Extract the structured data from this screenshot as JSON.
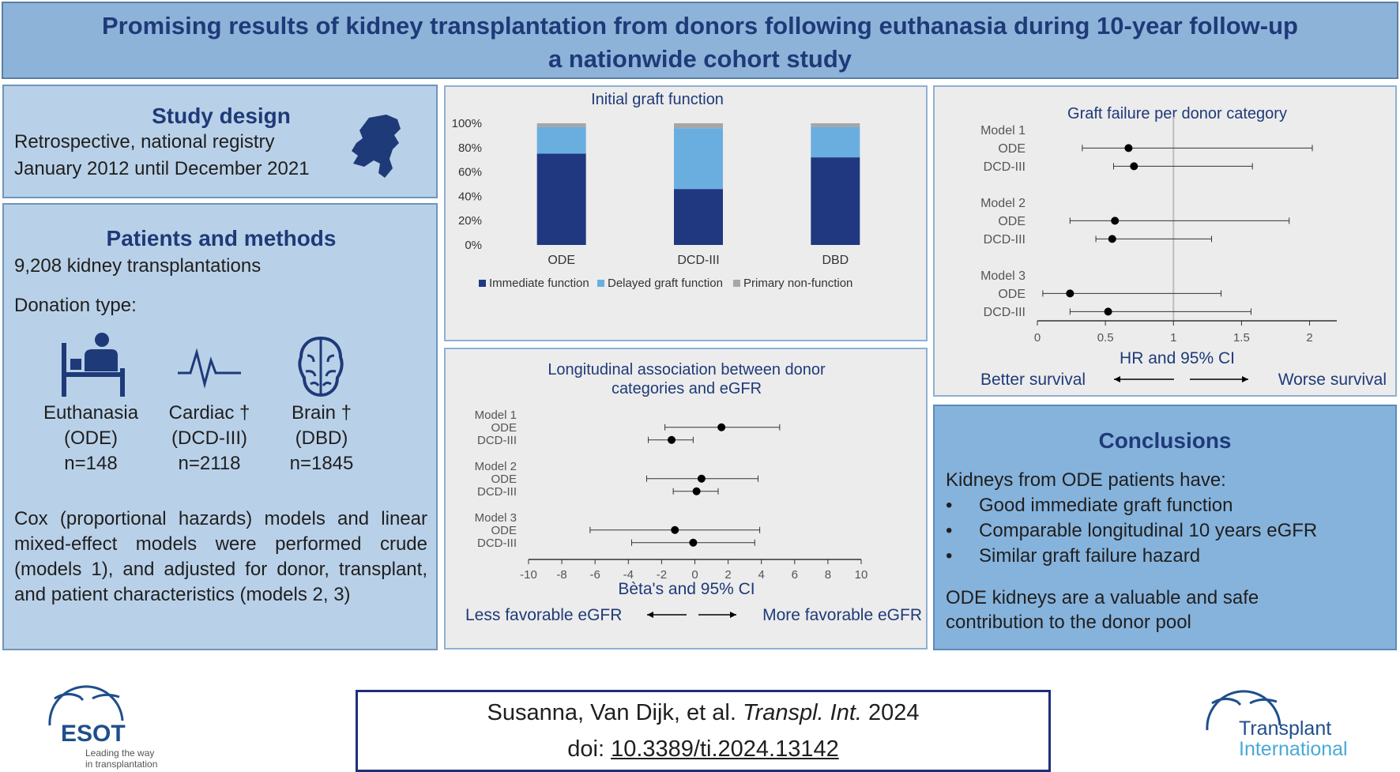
{
  "header": {
    "title_line1": "Promising results of kidney transplantation from donors following euthanasia during 10-year follow-up",
    "title_line2": "a nationwide cohort study"
  },
  "study_design": {
    "title": "Study design",
    "line1": "Retrospective, national registry",
    "line2": "January 2012 until December 2021",
    "map_icon": "netherlands-map-icon"
  },
  "patients": {
    "title": "Patients and methods",
    "count": "9,208 kidney transplantations",
    "donation_label": "Donation type:",
    "donors": [
      {
        "name": "Euthanasia",
        "abbr": "(ODE)",
        "n": "n=148",
        "icon": "patient-bed-icon"
      },
      {
        "name": "Cardiac †",
        "abbr": "(DCD-III)",
        "n": "n=2118",
        "icon": "heartbeat-icon"
      },
      {
        "name": "Brain †",
        "abbr": "(DBD)",
        "n": "n=1845",
        "icon": "brain-icon"
      }
    ],
    "methods": "Cox (proportional hazards) models and linear mixed-effect models were performed crude (models 1), and adjusted for donor, transplant, and patient characteristics (models 2, 3)"
  },
  "chart_data": [
    {
      "type": "bar",
      "stacked": true,
      "title": "Initial graft function",
      "categories": [
        "ODE",
        "DCD-III",
        "DBD"
      ],
      "series": [
        {
          "name": "Immediate function",
          "values": [
            75,
            46,
            72
          ],
          "color": "#203880"
        },
        {
          "name": "Delayed graft function",
          "values": [
            22,
            50,
            25
          ],
          "color": "#6aaee0"
        },
        {
          "name": "Primary non-function",
          "values": [
            3,
            4,
            3
          ],
          "color": "#a6a6a6"
        }
      ],
      "yticks": [
        "0%",
        "20%",
        "40%",
        "60%",
        "80%",
        "100%"
      ],
      "ylim": [
        0,
        100
      ],
      "legend": "bottom"
    },
    {
      "type": "forest",
      "title": "Graft failure per donor category",
      "xlabel": "HR and 95% CI",
      "xticks": [
        "0",
        "0.5",
        "1",
        "1.5",
        "2"
      ],
      "xlim": [
        0,
        2.2
      ],
      "reference_line": 1,
      "groups": [
        {
          "label": "Model 1",
          "rows": [
            {
              "label": "ODE",
              "est": 0.67,
              "lo": 0.33,
              "hi": 2.02
            },
            {
              "label": "DCD-III",
              "est": 0.71,
              "lo": 0.56,
              "hi": 1.58
            }
          ]
        },
        {
          "label": "Model 2",
          "rows": [
            {
              "label": "ODE",
              "est": 0.57,
              "lo": 0.24,
              "hi": 1.85
            },
            {
              "label": "DCD-III",
              "est": 0.55,
              "lo": 0.43,
              "hi": 1.28
            }
          ]
        },
        {
          "label": "Model 3",
          "rows": [
            {
              "label": "ODE",
              "est": 0.24,
              "lo": 0.04,
              "hi": 1.35
            },
            {
              "label": "DCD-III",
              "est": 0.52,
              "lo": 0.24,
              "hi": 1.57
            }
          ]
        }
      ],
      "left_direction": "Better survival",
      "right_direction": "Worse survival"
    },
    {
      "type": "forest",
      "title_line1": "Longitudinal association between donor",
      "title_line2": "categories and eGFR",
      "xlabel": "Bèta's and 95% CI",
      "xticks": [
        "-10",
        "-8",
        "-6",
        "-4",
        "-2",
        "0",
        "2",
        "4",
        "6",
        "8",
        "10"
      ],
      "xlim": [
        -10,
        10
      ],
      "groups": [
        {
          "label": "Model 1",
          "rows": [
            {
              "label": "ODE",
              "est": 1.6,
              "lo": -1.8,
              "hi": 5.1
            },
            {
              "label": "DCD-III",
              "est": -1.4,
              "lo": -2.8,
              "hi": -0.1
            }
          ]
        },
        {
          "label": "Model 2",
          "rows": [
            {
              "label": "ODE",
              "est": 0.4,
              "lo": -2.9,
              "hi": 3.8
            },
            {
              "label": "DCD-III",
              "est": 0.1,
              "lo": -1.3,
              "hi": 1.4
            }
          ]
        },
        {
          "label": "Model 3",
          "rows": [
            {
              "label": "ODE",
              "est": -1.2,
              "lo": -6.3,
              "hi": 3.9
            },
            {
              "label": "DCD-III",
              "est": -0.1,
              "lo": -3.8,
              "hi": 3.6
            }
          ]
        }
      ],
      "left_direction": "Less favorable eGFR",
      "right_direction": "More favorable eGFR"
    }
  ],
  "conclusions": {
    "title": "Conclusions",
    "intro": "Kidneys from ODE patients have:",
    "bullets": [
      "Good immediate graft function",
      "Comparable longitudinal 10 years eGFR",
      "Similar graft failure hazard"
    ],
    "closing": "ODE kidneys are a valuable and safe contribution to the donor pool"
  },
  "reference": {
    "authors": "Susanna, Van Dijk, et al.",
    "journal": "Transpl. Int.",
    "year": "2024",
    "doi_label": "doi:",
    "doi": "10.3389/ti.2024.13142"
  },
  "logos": {
    "esot_name": "ESOT",
    "esot_tagline1": "Leading the way",
    "esot_tagline2": "in transplantation",
    "ti_line1": "Transplant",
    "ti_line2": "International"
  },
  "colors": {
    "dark_blue": "#1f3a78",
    "immediate": "#203880",
    "delayed": "#6aaee0",
    "pnf": "#a6a6a6"
  }
}
